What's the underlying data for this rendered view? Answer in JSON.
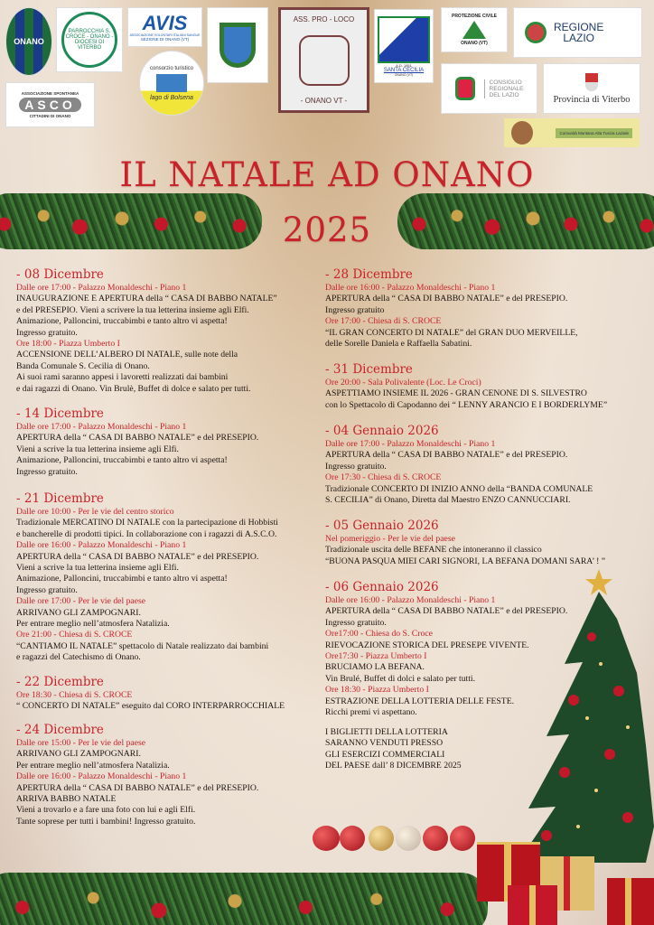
{
  "logos": {
    "onano_calcio": "ONANO",
    "parrocchia": "PARROCCHIA S. CROCE - ONANO - DIOCESI DI VITERBO",
    "avis": "AVIS",
    "avis_sub": "ASSOCIAZIONE VOLONTARI ITALIANI SANGUE",
    "avis_sez": "SEZIONE DI ONANO (VT)",
    "consorzio": "consorzio turistico",
    "consorzio_sub": "lago di Bolsena",
    "proloco_top": "ASS. PRO - LOCO",
    "proloco_bottom": "- ONANO VT -",
    "banda": "SANTA CECILIA",
    "banda_sub": "ONANO (VT)",
    "banda_year": "A.D. 1851",
    "protezione": "PROTEZIONE CIVILE",
    "protezione_sub": "ONANO (VT)",
    "regione_1": "REGIONE",
    "regione_2": "LAZIO",
    "consiglio_1": "CONSIGLIO",
    "consiglio_2": "REGIONALE",
    "consiglio_3": "DEL LAZIO",
    "provincia": "Provincia di Viterbo",
    "asco_top": "ASSOCIAZIONE SPONTANEA",
    "asco": "ASCO",
    "asco_bottom": "CITTADINI DI ONANO",
    "comunita": "Comunità Montana Alta Tuscia Laziale"
  },
  "title": {
    "line1": "IL NATALE AD ONANO",
    "line2": "2025"
  },
  "colors": {
    "accent": "#c8232a",
    "text": "#1d1510"
  },
  "left_events": [
    {
      "date": "- 08 Dicembre",
      "lines": [
        {
          "t": 1,
          "s": "Dalle ore 17:00 - Palazzo Monaldeschi - Piano 1"
        },
        {
          "t": 0,
          "s": "INAUGURAZIONE E APERTURA della “ CASA DI BABBO NATALE”"
        },
        {
          "t": 0,
          "s": "e del PRESEPIO. Vieni a scrivere la tua letterina insieme agli Elfi."
        },
        {
          "t": 0,
          "s": "Animazione, Palloncini, truccabimbi e tanto altro vi aspetta!"
        },
        {
          "t": 0,
          "s": "Ingresso gratuito."
        },
        {
          "t": 1,
          "s": "Ore 18:00 - Piazza Umberto I"
        },
        {
          "t": 0,
          "s": "ACCENSIONE DELL’ALBERO DI NATALE, sulle note della"
        },
        {
          "t": 0,
          "s": "Banda Comunale S. Cecilia di Onano."
        },
        {
          "t": 0,
          "s": "Ai suoi rami saranno appesi i lavoretti realizzati dai bambini"
        },
        {
          "t": 0,
          "s": "e dai ragazzi di Onano. Vin Brulè, Buffet di dolce e salato per tutti."
        }
      ]
    },
    {
      "date": "- 14 Dicembre",
      "lines": [
        {
          "t": 1,
          "s": "Dalle ore 17:00 - Palazzo Monaldeschi - Piano 1"
        },
        {
          "t": 0,
          "s": "APERTURA della “ CASA DI BABBO NATALE” e del PRESEPIO."
        },
        {
          "t": 0,
          "s": "Vieni a scrive la tua letterina insieme agli Elfi."
        },
        {
          "t": 0,
          "s": "Animazione, Palloncini, truccabimbi e tanto altro vi aspetta!"
        },
        {
          "t": 0,
          "s": "Ingresso gratuito."
        }
      ]
    },
    {
      "date": "- 21 Dicembre",
      "lines": [
        {
          "t": 1,
          "s": "Dalle ore 10:00 - Per le vie del centro storico"
        },
        {
          "t": 0,
          "s": "Tradizionale MERCATINO DI NATALE con la partecipazione di Hobbisti"
        },
        {
          "t": 0,
          "s": "e bancherelle di prodotti tipici. In collaborazione con i ragazzi di A.S.C.O."
        },
        {
          "t": 1,
          "s": "Dalle ore 16:00 - Palazzo Monaldeschi - Piano 1"
        },
        {
          "t": 0,
          "s": "APERTURA della “ CASA DI BABBO NATALE” e del PRESEPIO."
        },
        {
          "t": 0,
          "s": "Vieni a scrive la tua letterina insieme agli Elfi."
        },
        {
          "t": 0,
          "s": "Animazione, Palloncini, truccabimbi e tanto altro vi aspetta!"
        },
        {
          "t": 0,
          "s": "Ingresso gratuito."
        },
        {
          "t": 1,
          "s": "Dalle ore 17:00 - Per le vie del paese"
        },
        {
          "t": 0,
          "s": "ARRIVANO GLI ZAMPOGNARI."
        },
        {
          "t": 0,
          "s": "Per entrare meglio nell’atmosfera Natalizia."
        },
        {
          "t": 1,
          "s": "Ore 21:00 - Chiesa di S. CROCE"
        },
        {
          "t": 0,
          "s": "“CANTIAMO IL NATALE” spettacolo di Natale realizzato dai bambini"
        },
        {
          "t": 0,
          "s": "e ragazzi del Catechismo di Onano."
        }
      ]
    },
    {
      "date": "- 22 Dicembre",
      "lines": [
        {
          "t": 1,
          "s": "Ore 18:30 - Chiesa di S. CROCE"
        },
        {
          "t": 0,
          "s": "“ CONCERTO DI NATALE” eseguito dal CORO INTERPARROCCHIALE"
        }
      ]
    },
    {
      "date": "- 24 Dicembre",
      "lines": [
        {
          "t": 1,
          "s": "Dalle ore 15:00 - Per le vie del paese"
        },
        {
          "t": 0,
          "s": "ARRIVANO GLI ZAMPOGNARI."
        },
        {
          "t": 0,
          "s": "Per entrare meglio nell’atmosfera Natalizia."
        },
        {
          "t": 1,
          "s": "Dalle ore 16:00 - Palazzo Monaldeschi - Piano 1"
        },
        {
          "t": 0,
          "s": "APERTURA della “ CASA DI BABBO NATALE” e del PRESEPIO."
        },
        {
          "t": 0,
          "s": "ARRIVA BABBO NATALE"
        },
        {
          "t": 0,
          "s": "Vieni a trovarlo e a fare una foto con lui e agli Elfi."
        },
        {
          "t": 0,
          "s": "Tante soprese per tutti i bambini! Ingresso gratuito."
        }
      ]
    }
  ],
  "right_events": [
    {
      "date": "- 28 Dicembre",
      "lines": [
        {
          "t": 1,
          "s": "Dalle ore 16:00 - Palazzo Monaldeschi - Piano 1"
        },
        {
          "t": 0,
          "s": "APERTURA della “ CASA DI BABBO NATALE” e del PRESEPIO."
        },
        {
          "t": 0,
          "s": "Ingresso gratuito"
        },
        {
          "t": 1,
          "s": "Ore 17:00 - Chiesa di S. CROCE"
        },
        {
          "t": 0,
          "s": "“IL GRAN CONCERTO DI NATALE” del GRAN DUO MERVEILLE,"
        },
        {
          "t": 0,
          "s": "delle Sorelle Daniela e Raffaella Sabatini."
        }
      ]
    },
    {
      "date": "- 31 Dicembre",
      "lines": [
        {
          "t": 1,
          "s": "Ore  20:00 - Sala Polivalente (Loc. Le Croci)"
        },
        {
          "t": 0,
          "s": "ASPETTIAMO INSIEME IL 2026 - GRAN CENONE DI S. SILVESTRO"
        },
        {
          "t": 0,
          "s": "con lo Spettacolo di Capodanno dei “ LENNY ARANCIO E I BORDERLYME”"
        }
      ]
    },
    {
      "date": "- 04 Gennaio 2026",
      "lines": [
        {
          "t": 1,
          "s": "Dalle ore 17:00 - Palazzo Monaldeschi - Piano 1"
        },
        {
          "t": 0,
          "s": "APERTURA della “ CASA DI BABBO NATALE” e del PRESEPIO."
        },
        {
          "t": 0,
          "s": "Ingresso gratuito."
        },
        {
          "t": 1,
          "s": "Ore 17:30 - Chiesa di S. CROCE"
        },
        {
          "t": 0,
          "s": "Tradizionale CONCERTO DI INIZIO ANNO della “BANDA COMUNALE"
        },
        {
          "t": 0,
          "s": "S. CECILIA” di Onano, Diretta dal Maestro ENZO CANNUCCIARI."
        }
      ]
    },
    {
      "date": "- 05 Gennaio 2026",
      "lines": [
        {
          "t": 1,
          "s": "Nel pomeriggio - Per le vie del paese"
        },
        {
          "t": 0,
          "s": "Tradizionale uscita delle BEFANE che intoneranno il classico"
        },
        {
          "t": 0,
          "s": "“BUONA PASQUA MIEI CARI SIGNORI, LA BEFANA DOMANI SARA’ ! ”"
        }
      ]
    },
    {
      "date": "- 06 Gennaio 2026",
      "lines": [
        {
          "t": 1,
          "s": "Dalle ore 16:00 - Palazzo Monaldeschi - Piano 1"
        },
        {
          "t": 0,
          "s": "APERTURA della “ CASA DI BABBO NATALE” e del PRESEPIO."
        },
        {
          "t": 0,
          "s": "Ingresso gratuito."
        },
        {
          "t": 1,
          "s": "Ore17:00 - Chiesa do S. Croce"
        },
        {
          "t": 0,
          "s": "RIEVOCAZIONE STORICA DEL PRESEPE VIVENTE."
        },
        {
          "t": 1,
          "s": "Ore17:30 - Piazza Umberto I"
        },
        {
          "t": 0,
          "s": "BRUCIAMO LA BEFANA."
        },
        {
          "t": 0,
          "s": "Vin Brulé, Buffet di dolci e salato per tutti."
        },
        {
          "t": 1,
          "s": "Ore 18:30 - Piazza Umberto I"
        },
        {
          "t": 0,
          "s": "ESTRAZIONE DELLA LOTTERIA DELLE FESTE."
        },
        {
          "t": 0,
          "s": "Ricchi premi vi aspettano."
        }
      ]
    }
  ],
  "lottery_note": [
    "I BIGLIETTI DELLA LOTTERIA",
    "SARANNO VENDUTI PRESSO",
    "GLI ESERCIZI COMMERCIALI",
    "DEL PAESE dall’ 8 DICEMBRE 2025"
  ]
}
